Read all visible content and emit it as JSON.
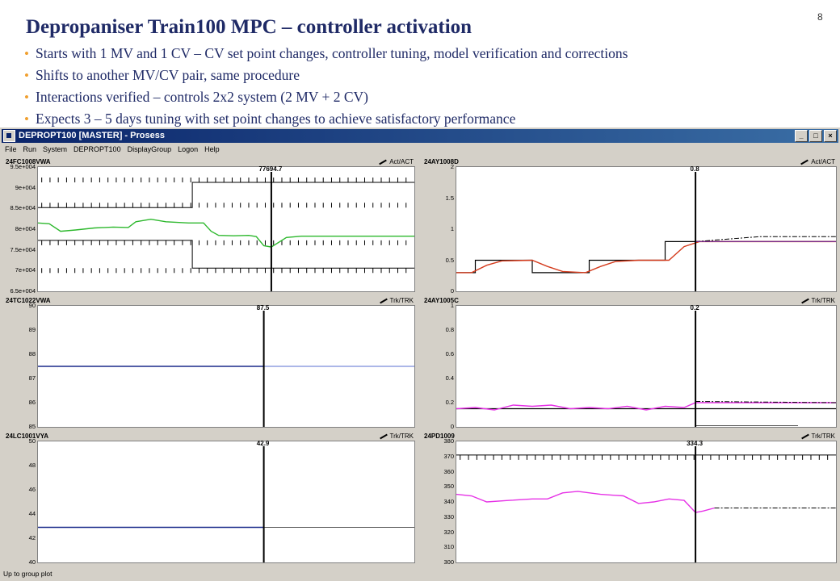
{
  "slide": {
    "title": "Depropaniser Train100 MPC – controller activation",
    "page_number": "8",
    "bullets": [
      "Starts with 1 MV and 1 CV – CV set point changes, controller tuning, model verification and corrections",
      "Shifts to another MV/CV pair, same procedure",
      "Interactions verified – controls 2x2 system (2 MV + 2 CV)",
      "Expects 3 – 5 days tuning with set point changes to achieve satisfactory performance"
    ]
  },
  "window": {
    "title": "DEPROPT100 [MASTER] - Prosess",
    "buttons": [
      "_",
      "□",
      "×"
    ],
    "menu": [
      "File",
      "Run",
      "System",
      "DEPROPT100",
      "DisplayGroup",
      "Logon",
      "Help"
    ],
    "status": "Up to group plot"
  },
  "colors": {
    "green": "#2db82d",
    "red": "#d43c1e",
    "navy": "#1a2a8a",
    "blue": "#5a6fd0",
    "magenta": "#e632e6",
    "black": "#000000"
  },
  "panels": [
    {
      "tag": "24FC1008VWA",
      "mode": "Act/ACT",
      "cursor_value": "77694.7",
      "y_labels": [
        "9.5e+004",
        "9e+004",
        "8.5e+004",
        "8e+004",
        "7.5e+004",
        "7e+004",
        "6.5e+004"
      ],
      "y_range": [
        65000,
        95000
      ],
      "cursor_x": 0.62
    },
    {
      "tag": "24AY1008D",
      "mode": "Act/ACT",
      "cursor_value": "0.8",
      "y_labels": [
        "2",
        "1.5",
        "1",
        "0.5",
        "0"
      ],
      "y_range": [
        0,
        2
      ],
      "cursor_x": 0.63
    },
    {
      "tag": "24TC1022VWA",
      "mode": "Trk/TRK",
      "cursor_value": "87.5",
      "y_labels": [
        "90",
        "89",
        "88",
        "87",
        "86",
        "85"
      ],
      "y_range": [
        85,
        90
      ],
      "cursor_x": 0.6
    },
    {
      "tag": "24AY1005C",
      "mode": "Trk/TRK",
      "cursor_value": "0.2",
      "y_labels": [
        "1",
        "0.8",
        "0.6",
        "0.4",
        "0.2",
        "0"
      ],
      "y_range": [
        0,
        1
      ],
      "cursor_x": 0.63
    },
    {
      "tag": "24LC1001VYA",
      "mode": "Trk/TRK",
      "cursor_value": "42.9",
      "y_labels": [
        "50",
        "48",
        "46",
        "44",
        "42",
        "40"
      ],
      "y_range": [
        40,
        50
      ],
      "cursor_x": 0.6
    },
    {
      "tag": "24PD1009",
      "mode": "Trk/TRK",
      "cursor_value": "334.3",
      "y_labels": [
        "380",
        "370",
        "360",
        "350",
        "340",
        "330",
        "320",
        "310",
        "300"
      ],
      "y_range": [
        300,
        380
      ],
      "cursor_x": 0.63
    }
  ],
  "traces": {
    "p0_green": [
      [
        0,
        81500
      ],
      [
        0.03,
        81300
      ],
      [
        0.06,
        79500
      ],
      [
        0.1,
        79800
      ],
      [
        0.15,
        80300
      ],
      [
        0.2,
        80500
      ],
      [
        0.24,
        80400
      ],
      [
        0.26,
        81800
      ],
      [
        0.3,
        82400
      ],
      [
        0.34,
        81800
      ],
      [
        0.4,
        81500
      ],
      [
        0.44,
        81500
      ],
      [
        0.46,
        79500
      ],
      [
        0.48,
        78500
      ],
      [
        0.52,
        78400
      ],
      [
        0.56,
        78500
      ],
      [
        0.58,
        78200
      ],
      [
        0.6,
        76000
      ],
      [
        0.62,
        75700
      ],
      [
        0.66,
        78000
      ],
      [
        0.7,
        78300
      ],
      [
        1,
        78300
      ]
    ],
    "p0_upper": [
      [
        0,
        85200
      ],
      [
        0.41,
        85200
      ],
      [
        0.41,
        91300
      ],
      [
        1,
        91300
      ]
    ],
    "p0_lower": [
      [
        0,
        77300
      ],
      [
        0.41,
        77300
      ],
      [
        0.41,
        70600
      ],
      [
        1,
        70600
      ]
    ],
    "p1_sp": [
      [
        0,
        0.3
      ],
      [
        0.05,
        0.3
      ],
      [
        0.05,
        0.5
      ],
      [
        0.2,
        0.5
      ],
      [
        0.2,
        0.3
      ],
      [
        0.35,
        0.3
      ],
      [
        0.35,
        0.5
      ],
      [
        0.55,
        0.5
      ],
      [
        0.55,
        0.8
      ],
      [
        1,
        0.8
      ]
    ],
    "p1_pv": [
      [
        0,
        0.3
      ],
      [
        0.04,
        0.3
      ],
      [
        0.08,
        0.42
      ],
      [
        0.12,
        0.49
      ],
      [
        0.2,
        0.5
      ],
      [
        0.24,
        0.4
      ],
      [
        0.28,
        0.32
      ],
      [
        0.34,
        0.3
      ],
      [
        0.38,
        0.4
      ],
      [
        0.42,
        0.48
      ],
      [
        0.48,
        0.5
      ],
      [
        0.56,
        0.5
      ],
      [
        0.6,
        0.72
      ],
      [
        0.64,
        0.8
      ],
      [
        1,
        0.8
      ]
    ],
    "p1_pred": [
      [
        0.63,
        0.8
      ],
      [
        0.8,
        0.88
      ],
      [
        1,
        0.88
      ]
    ],
    "p2_pv": [
      [
        0,
        87.5
      ],
      [
        1,
        87.5
      ]
    ],
    "p3_pv": [
      [
        0,
        0.15
      ],
      [
        0.05,
        0.16
      ],
      [
        0.1,
        0.14
      ],
      [
        0.15,
        0.18
      ],
      [
        0.2,
        0.17
      ],
      [
        0.25,
        0.18
      ],
      [
        0.3,
        0.15
      ],
      [
        0.35,
        0.16
      ],
      [
        0.4,
        0.15
      ],
      [
        0.45,
        0.17
      ],
      [
        0.5,
        0.14
      ],
      [
        0.55,
        0.17
      ],
      [
        0.6,
        0.16
      ],
      [
        0.63,
        0.2
      ],
      [
        1,
        0.2
      ]
    ],
    "p3_sp": [
      [
        0,
        0.15
      ],
      [
        1,
        0.15
      ]
    ],
    "p3_pred": [
      [
        0.63,
        0.21
      ],
      [
        1,
        0.2
      ]
    ],
    "p4_pv": [
      [
        0,
        42.9
      ],
      [
        1,
        42.9
      ]
    ],
    "p5_pv": [
      [
        0,
        345
      ],
      [
        0.04,
        344
      ],
      [
        0.08,
        340
      ],
      [
        0.14,
        341
      ],
      [
        0.2,
        342
      ],
      [
        0.24,
        342
      ],
      [
        0.28,
        346
      ],
      [
        0.32,
        347
      ],
      [
        0.38,
        345
      ],
      [
        0.44,
        344
      ],
      [
        0.48,
        339
      ],
      [
        0.52,
        340
      ],
      [
        0.56,
        342
      ],
      [
        0.6,
        341
      ],
      [
        0.63,
        333
      ],
      [
        0.65,
        334
      ],
      [
        0.68,
        336
      ]
    ],
    "p5_pred": [
      [
        0.68,
        336
      ],
      [
        1,
        336
      ]
    ],
    "p5_limit": [
      [
        0,
        371
      ],
      [
        1,
        371
      ]
    ]
  }
}
